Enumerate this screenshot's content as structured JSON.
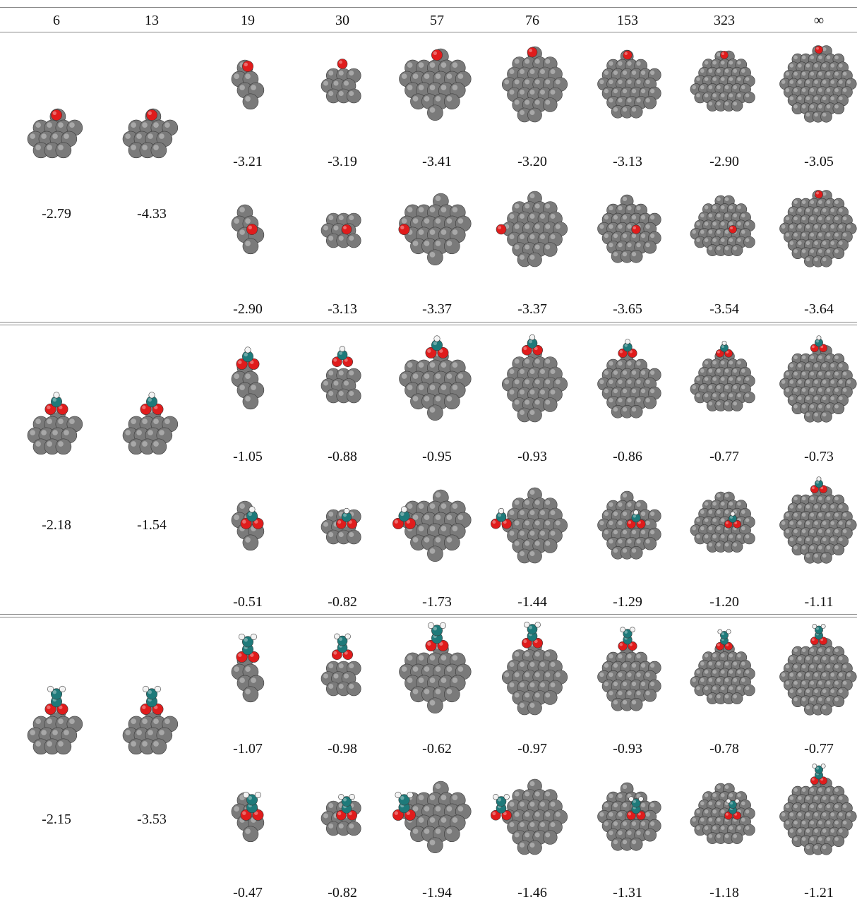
{
  "table": {
    "columns": [
      "6",
      "13",
      "19",
      "30",
      "57",
      "76",
      "153",
      "323",
      "∞"
    ],
    "sections": [
      {
        "adsorbate": "O",
        "small": [
          "-2.79",
          "-4.33"
        ],
        "row_a": [
          "-3.21",
          "-3.19",
          "-3.41",
          "-3.20",
          "-3.13",
          "-2.90",
          "-3.05"
        ],
        "row_b": [
          "-2.90",
          "-3.13",
          "-3.37",
          "-3.37",
          "-3.65",
          "-3.54",
          "-3.64"
        ]
      },
      {
        "adsorbate": "HCOO",
        "small": [
          "-2.18",
          "-1.54"
        ],
        "row_a": [
          "-1.05",
          "-0.88",
          "-0.95",
          "-0.93",
          "-0.86",
          "-0.77",
          "-0.73"
        ],
        "row_b": [
          "-0.51",
          "-0.82",
          "-1.73",
          "-1.44",
          "-1.29",
          "-1.20",
          "-1.11"
        ]
      },
      {
        "adsorbate": "CH3COO",
        "small": [
          "-2.15",
          "-3.53"
        ],
        "row_a": [
          "-1.07",
          "-0.98",
          "-0.62",
          "-0.97",
          "-0.93",
          "-0.78",
          "-0.77"
        ],
        "row_b": [
          "-0.47",
          "-0.82",
          "-1.94",
          "-1.46",
          "-1.31",
          "-1.18",
          "-1.21"
        ]
      }
    ]
  },
  "colors": {
    "metal": "#7a7a7a",
    "oxygen": "#e01c1c",
    "carbon": "#1e7a7a",
    "hydrogen": "#f2f2f2"
  }
}
